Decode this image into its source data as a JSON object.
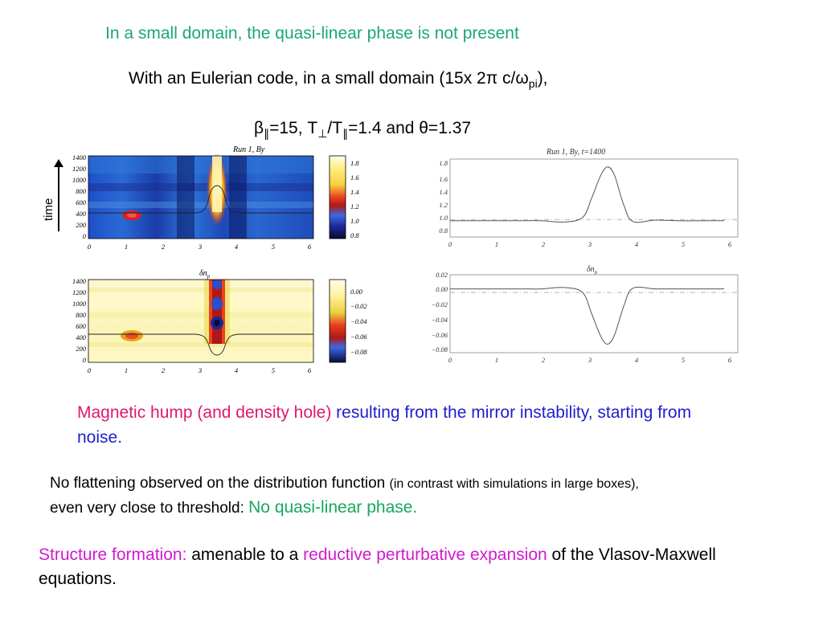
{
  "header": {
    "title": "In a small domain, the quasi-linear phase is not present",
    "subtitle_prefix": "With an Eulerian code, in a small domain (15x 2π c/ω",
    "subtitle_sub": "pi",
    "subtitle_suffix": "),",
    "params_beta": "β",
    "params_par1": "∥",
    "params_mid": "=15,  T",
    "params_perp": "⊥",
    "params_slash": "/T",
    "params_par2": "∥",
    "params_end": "=1.4 and θ=1.37"
  },
  "paragraphs": {
    "p1_red": "Magnetic hump (and density hole)",
    "p1_blue": " resulting from the mirror instability, starting from noise.",
    "p2_a": "No flattening observed on the distribution function ",
    "p2_small": "(in contrast with simulations in large boxes),",
    "p2_b": "even very close to threshold: ",
    "p2_green": "No quasi-linear phase.",
    "p3_mag1": "Structure formation:",
    "p3_b": " amenable to a ",
    "p3_mag2": "reductive perturbative expansion",
    "p3_c": " of the Vlasov-Maxwell equations."
  },
  "colors": {
    "title": "#1aa779",
    "red_text": "#e0186c",
    "blue_text": "#1e1ed0",
    "green_text": "#16a85c",
    "magenta_text": "#d01ad0"
  },
  "figures": {
    "time_label": "time",
    "top_left_title": "Run 1, By",
    "top_right_title": "Run 1, By, t=1400",
    "bottom_left_title": "δn",
    "bottom_left_title_sub": "p",
    "bottom_right_title": "δn",
    "bottom_right_title_sub": "p",
    "y_ticks_time": [
      "1400",
      "1200",
      "1000",
      "800",
      "600",
      "400",
      "200",
      "0"
    ],
    "x_ticks": [
      "0",
      "1",
      "2",
      "3",
      "4",
      "5",
      "6"
    ],
    "colorbar_top_ticks": [
      "1.8",
      "1.6",
      "1.4",
      "1.2",
      "1.0",
      "0.8"
    ],
    "colorbar_bottom_ticks": [
      "0.00",
      "−0.02",
      "−0.04",
      "−0.06",
      "−0.08"
    ],
    "right_top_y_ticks": [
      "1.8",
      "1.6",
      "1.4",
      "1.2",
      "1.0",
      "0.8"
    ],
    "right_bottom_y_ticks": [
      "0.02",
      "0.00",
      "−0.02",
      "−0.04",
      "−0.06",
      "−0.08"
    ]
  },
  "chart_data": [
    {
      "type": "line",
      "title": "Run 1, By, t=1400",
      "x": [
        0,
        0.5,
        1,
        1.5,
        2,
        2.5,
        2.9,
        3.1,
        3.3,
        3.45,
        3.6,
        3.8,
        4.0,
        4.5,
        5,
        5.5,
        6
      ],
      "series": [
        {
          "values": [
            0.95,
            0.95,
            0.95,
            0.95,
            0.95,
            0.93,
            1.0,
            1.3,
            1.65,
            1.78,
            1.65,
            1.2,
            0.94,
            0.96,
            0.95,
            0.95,
            0.95
          ]
        }
      ],
      "reference_line": 0.97,
      "xlim": [
        0,
        6.3
      ],
      "ylim": [
        0.7,
        1.9
      ]
    },
    {
      "type": "line",
      "title": "δnp",
      "x": [
        0,
        0.5,
        1,
        1.5,
        2,
        2.5,
        2.9,
        3.1,
        3.3,
        3.45,
        3.6,
        3.8,
        4.0,
        4.5,
        5,
        5.5,
        6
      ],
      "series": [
        {
          "values": [
            0.005,
            0.005,
            0.005,
            0.005,
            0.005,
            0.007,
            0.0,
            -0.03,
            -0.062,
            -0.073,
            -0.06,
            -0.02,
            0.006,
            0.005,
            0.005,
            0.005,
            0.005
          ]
        }
      ],
      "reference_line": 0.0,
      "xlim": [
        0,
        6.3
      ],
      "ylim": [
        -0.085,
        0.025
      ]
    }
  ]
}
